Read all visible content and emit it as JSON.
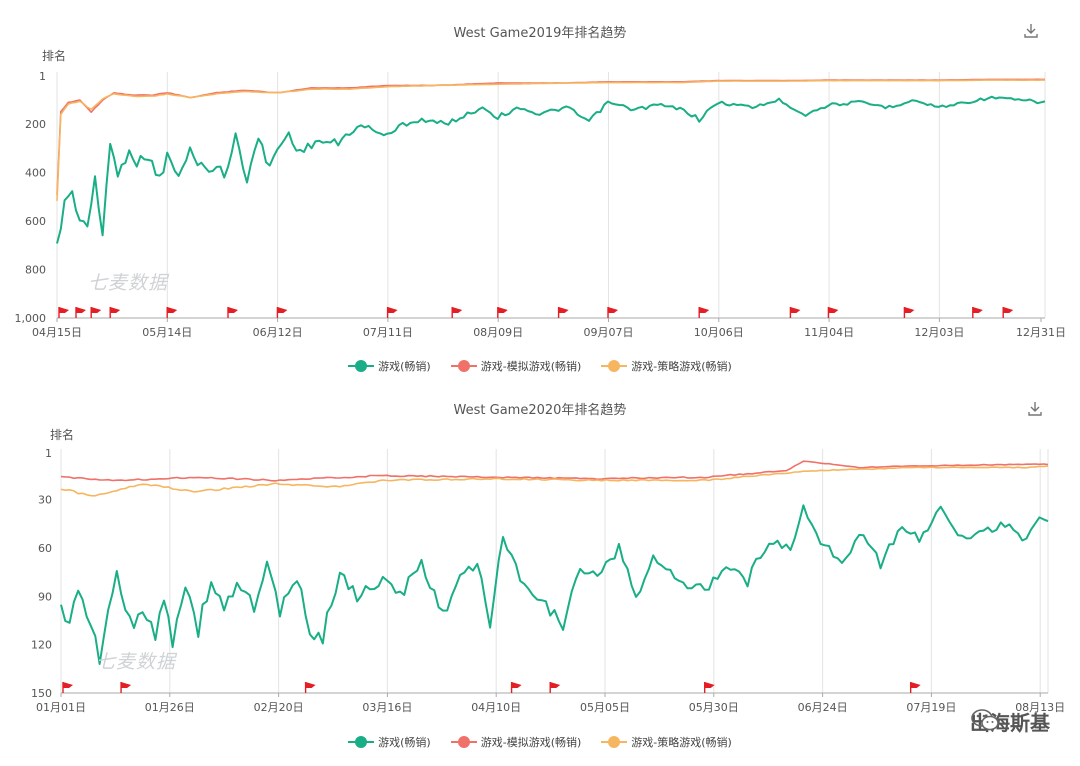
{
  "colors": {
    "game": "#1aae86",
    "sim": "#f07168",
    "strategy": "#f6b660",
    "flag": "#e31e24"
  },
  "charts": [
    {
      "id": "2019",
      "title": "West Game2019年排名趋势",
      "ylabel": "排名",
      "yticks": [
        "1",
        "200",
        "400",
        "600",
        "800",
        "1,000"
      ],
      "ytick_values": [
        1,
        200,
        400,
        600,
        800,
        1000
      ],
      "xticks": [
        "04月15日",
        "05月14日",
        "06月12日",
        "07月11日",
        "08月09日",
        "09月07日",
        "10月06日",
        "11月04日",
        "12月03日",
        "12月31日"
      ],
      "watermark": "七麦数据",
      "legend": [
        "游戏(畅销)",
        "游戏-模拟游戏(畅销)",
        "游戏-策略游戏(畅销)"
      ]
    },
    {
      "id": "2020",
      "title": "West Game2020年排名趋势",
      "ylabel": "排名",
      "yticks": [
        "1",
        "30",
        "60",
        "90",
        "120",
        "150"
      ],
      "ytick_values": [
        1,
        30,
        60,
        90,
        120,
        150
      ],
      "xticks": [
        "01月01日",
        "01月26日",
        "02月20日",
        "03月16日",
        "04月10日",
        "05月05日",
        "05月30日",
        "06月24日",
        "07月19日",
        "08月13日"
      ],
      "watermark": "七麦数据",
      "legend": [
        "游戏(畅销)",
        "游戏-模拟游戏(畅销)",
        "游戏-策略游戏(畅销)"
      ]
    }
  ],
  "brand": {
    "text": "出海斯基",
    "icon": "wechat-icon"
  },
  "chart_data": [
    {
      "type": "line",
      "title": "West Game2019年排名趋势",
      "ylabel": "排名",
      "y_inverted": true,
      "ylim": [
        1,
        1000
      ],
      "x_range": [
        "2019-04-15",
        "2019-12-31"
      ],
      "series": [
        {
          "name": "游戏(畅销)",
          "keyframes": [
            [
              "2019-04-15",
              720
            ],
            [
              "2019-04-17",
              510
            ],
            [
              "2019-04-19",
              490
            ],
            [
              "2019-04-21",
              580
            ],
            [
              "2019-04-23",
              620
            ],
            [
              "2019-04-25",
              440
            ],
            [
              "2019-04-27",
              650
            ],
            [
              "2019-04-29",
              270
            ],
            [
              "2019-05-01",
              420
            ],
            [
              "2019-05-04",
              300
            ],
            [
              "2019-05-06",
              360
            ],
            [
              "2019-05-09",
              330
            ],
            [
              "2019-05-12",
              430
            ],
            [
              "2019-05-14",
              330
            ],
            [
              "2019-05-17",
              420
            ],
            [
              "2019-05-20",
              310
            ],
            [
              "2019-05-24",
              390
            ],
            [
              "2019-05-27",
              370
            ],
            [
              "2019-05-29",
              420
            ],
            [
              "2019-06-01",
              250
            ],
            [
              "2019-06-04",
              420
            ],
            [
              "2019-06-07",
              260
            ],
            [
              "2019-06-10",
              380
            ],
            [
              "2019-06-12",
              300
            ],
            [
              "2019-06-15",
              240
            ],
            [
              "2019-06-18",
              320
            ],
            [
              "2019-06-22",
              270
            ],
            [
              "2019-06-28",
              280
            ],
            [
              "2019-07-02",
              220
            ],
            [
              "2019-07-06",
              210
            ],
            [
              "2019-07-11",
              250
            ],
            [
              "2019-07-15",
              200
            ],
            [
              "2019-07-20",
              180
            ],
            [
              "2019-07-26",
              200
            ],
            [
              "2019-08-01",
              160
            ],
            [
              "2019-08-05",
              130
            ],
            [
              "2019-08-09",
              170
            ],
            [
              "2019-08-15",
              130
            ],
            [
              "2019-08-20",
              160
            ],
            [
              "2019-08-27",
              130
            ],
            [
              "2019-09-02",
              190
            ],
            [
              "2019-09-07",
              110
            ],
            [
              "2019-09-14",
              140
            ],
            [
              "2019-09-20",
              120
            ],
            [
              "2019-09-27",
              140
            ],
            [
              "2019-10-01",
              180
            ],
            [
              "2019-10-06",
              110
            ],
            [
              "2019-10-15",
              130
            ],
            [
              "2019-10-22",
              100
            ],
            [
              "2019-10-29",
              160
            ],
            [
              "2019-11-04",
              120
            ],
            [
              "2019-11-12",
              110
            ],
            [
              "2019-11-20",
              130
            ],
            [
              "2019-11-26",
              100
            ],
            [
              "2019-12-03",
              130
            ],
            [
              "2019-12-10",
              110
            ],
            [
              "2019-12-17",
              90
            ],
            [
              "2019-12-24",
              100
            ],
            [
              "2019-12-31",
              110
            ]
          ]
        },
        {
          "name": "游戏-模拟游戏(畅销)",
          "keyframes": [
            [
              "2019-04-15",
              500
            ],
            [
              "2019-04-16",
              150
            ],
            [
              "2019-04-18",
              110
            ],
            [
              "2019-04-21",
              100
            ],
            [
              "2019-04-24",
              150
            ],
            [
              "2019-04-27",
              100
            ],
            [
              "2019-04-30",
              70
            ],
            [
              "2019-05-05",
              80
            ],
            [
              "2019-05-10",
              80
            ],
            [
              "2019-05-14",
              70
            ],
            [
              "2019-05-20",
              90
            ],
            [
              "2019-05-27",
              70
            ],
            [
              "2019-06-03",
              60
            ],
            [
              "2019-06-12",
              70
            ],
            [
              "2019-06-21",
              50
            ],
            [
              "2019-07-01",
              50
            ],
            [
              "2019-07-11",
              40
            ],
            [
              "2019-07-23",
              40
            ],
            [
              "2019-08-09",
              30
            ],
            [
              "2019-08-26",
              30
            ],
            [
              "2019-09-07",
              25
            ],
            [
              "2019-09-26",
              25
            ],
            [
              "2019-10-06",
              20
            ],
            [
              "2019-10-25",
              20
            ],
            [
              "2019-11-04",
              18
            ],
            [
              "2019-11-24",
              18
            ],
            [
              "2019-12-03",
              18
            ],
            [
              "2019-12-17",
              15
            ],
            [
              "2019-12-31",
              15
            ]
          ]
        },
        {
          "name": "游戏-策略游戏(畅销)",
          "keyframes": [
            [
              "2019-04-15",
              520
            ],
            [
              "2019-04-16",
              160
            ],
            [
              "2019-04-18",
              115
            ],
            [
              "2019-04-21",
              105
            ],
            [
              "2019-04-24",
              140
            ],
            [
              "2019-04-27",
              95
            ],
            [
              "2019-04-30",
              75
            ],
            [
              "2019-05-05",
              85
            ],
            [
              "2019-05-10",
              85
            ],
            [
              "2019-05-14",
              75
            ],
            [
              "2019-05-20",
              90
            ],
            [
              "2019-05-27",
              75
            ],
            [
              "2019-06-03",
              65
            ],
            [
              "2019-06-12",
              70
            ],
            [
              "2019-06-21",
              55
            ],
            [
              "2019-07-01",
              55
            ],
            [
              "2019-07-11",
              45
            ],
            [
              "2019-07-23",
              40
            ],
            [
              "2019-08-09",
              35
            ],
            [
              "2019-08-26",
              30
            ],
            [
              "2019-09-07",
              28
            ],
            [
              "2019-09-26",
              28
            ],
            [
              "2019-10-06",
              22
            ],
            [
              "2019-10-25",
              22
            ],
            [
              "2019-11-04",
              20
            ],
            [
              "2019-11-24",
              20
            ],
            [
              "2019-12-03",
              20
            ],
            [
              "2019-12-17",
              18
            ],
            [
              "2019-12-31",
              18
            ]
          ]
        }
      ],
      "event_flags": [
        "2019-04-15",
        "2019-04-20",
        "2019-04-24",
        "2019-04-29",
        "2019-05-14",
        "2019-05-30",
        "2019-06-12",
        "2019-07-11",
        "2019-07-28",
        "2019-08-09",
        "2019-08-25",
        "2019-09-07",
        "2019-10-01",
        "2019-10-25",
        "2019-11-04",
        "2019-11-24",
        "2019-12-12",
        "2019-12-20"
      ]
    },
    {
      "type": "line",
      "title": "West Game2020年排名趋势",
      "ylabel": "排名",
      "y_inverted": true,
      "ylim": [
        1,
        150
      ],
      "x_range": [
        "2020-01-01",
        "2020-08-18"
      ],
      "series": [
        {
          "name": "游戏(畅销)",
          "keyframes": [
            [
              "2020-01-01",
              98
            ],
            [
              "2020-01-03",
              106
            ],
            [
              "2020-01-05",
              90
            ],
            [
              "2020-01-07",
              98
            ],
            [
              "2020-01-10",
              132
            ],
            [
              "2020-01-12",
              96
            ],
            [
              "2020-01-14",
              78
            ],
            [
              "2020-01-16",
              100
            ],
            [
              "2020-01-18",
              110
            ],
            [
              "2020-01-20",
              96
            ],
            [
              "2020-01-23",
              112
            ],
            [
              "2020-01-25",
              90
            ],
            [
              "2020-01-27",
              116
            ],
            [
              "2020-01-30",
              84
            ],
            [
              "2020-02-02",
              110
            ],
            [
              "2020-02-05",
              80
            ],
            [
              "2020-02-08",
              98
            ],
            [
              "2020-02-11",
              82
            ],
            [
              "2020-02-15",
              96
            ],
            [
              "2020-02-18",
              70
            ],
            [
              "2020-02-21",
              100
            ],
            [
              "2020-02-25",
              80
            ],
            [
              "2020-02-28",
              110
            ],
            [
              "2020-03-02",
              115
            ],
            [
              "2020-03-06",
              75
            ],
            [
              "2020-03-10",
              90
            ],
            [
              "2020-03-16",
              80
            ],
            [
              "2020-03-20",
              90
            ],
            [
              "2020-03-25",
              70
            ],
            [
              "2020-03-30",
              100
            ],
            [
              "2020-04-03",
              80
            ],
            [
              "2020-04-07",
              70
            ],
            [
              "2020-04-10",
              106
            ],
            [
              "2020-04-13",
              52
            ],
            [
              "2020-04-17",
              80
            ],
            [
              "2020-04-22",
              90
            ],
            [
              "2020-04-27",
              110
            ],
            [
              "2020-05-01",
              70
            ],
            [
              "2020-05-05",
              80
            ],
            [
              "2020-05-10",
              60
            ],
            [
              "2020-05-14",
              90
            ],
            [
              "2020-05-18",
              65
            ],
            [
              "2020-05-23",
              80
            ],
            [
              "2020-05-30",
              85
            ],
            [
              "2020-06-04",
              72
            ],
            [
              "2020-06-09",
              80
            ],
            [
              "2020-06-14",
              55
            ],
            [
              "2020-06-19",
              60
            ],
            [
              "2020-06-22",
              35
            ],
            [
              "2020-06-26",
              55
            ],
            [
              "2020-07-01",
              70
            ],
            [
              "2020-07-05",
              50
            ],
            [
              "2020-07-10",
              70
            ],
            [
              "2020-07-15",
              45
            ],
            [
              "2020-07-19",
              55
            ],
            [
              "2020-07-24",
              35
            ],
            [
              "2020-07-29",
              55
            ],
            [
              "2020-08-03",
              50
            ],
            [
              "2020-08-08",
              45
            ],
            [
              "2020-08-13",
              55
            ],
            [
              "2020-08-16",
              40
            ],
            [
              "2020-08-18",
              42
            ]
          ]
        },
        {
          "name": "游戏-模拟游戏(畅销)",
          "keyframes": [
            [
              "2020-01-01",
              16
            ],
            [
              "2020-01-15",
              18
            ],
            [
              "2020-02-01",
              16
            ],
            [
              "2020-02-20",
              18
            ],
            [
              "2020-03-16",
              15
            ],
            [
              "2020-04-10",
              16
            ],
            [
              "2020-05-05",
              17
            ],
            [
              "2020-05-30",
              16
            ],
            [
              "2020-06-18",
              12
            ],
            [
              "2020-06-22",
              6
            ],
            [
              "2020-07-05",
              10
            ],
            [
              "2020-07-19",
              9
            ],
            [
              "2020-08-13",
              8
            ],
            [
              "2020-08-18",
              8
            ]
          ]
        },
        {
          "name": "游戏-策略游戏(畅销)",
          "keyframes": [
            [
              "2020-01-01",
              23
            ],
            [
              "2020-01-08",
              28
            ],
            [
              "2020-01-20",
              20
            ],
            [
              "2020-02-01",
              25
            ],
            [
              "2020-02-20",
              20
            ],
            [
              "2020-03-05",
              22
            ],
            [
              "2020-03-16",
              18
            ],
            [
              "2020-04-10",
              17
            ],
            [
              "2020-05-05",
              18
            ],
            [
              "2020-05-30",
              18
            ],
            [
              "2020-06-24",
              12
            ],
            [
              "2020-07-19",
              10
            ],
            [
              "2020-08-13",
              10
            ],
            [
              "2020-08-18",
              9
            ]
          ]
        }
      ],
      "event_flags": [
        "2020-01-01",
        "2020-01-15",
        "2020-02-27",
        "2020-04-15",
        "2020-04-24",
        "2020-05-30",
        "2020-07-17"
      ]
    }
  ]
}
